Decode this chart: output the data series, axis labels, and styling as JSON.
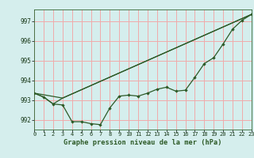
{
  "title": "Graphe pression niveau de la mer (hPa)",
  "bg_color": "#d5eeed",
  "grid_color": "#f0aaaa",
  "line_color": "#2d5a27",
  "xlim": [
    0,
    23
  ],
  "ylim": [
    991.5,
    997.6
  ],
  "yticks": [
    992,
    993,
    994,
    995,
    996,
    997
  ],
  "xticks": [
    0,
    1,
    2,
    3,
    4,
    5,
    6,
    7,
    8,
    9,
    10,
    11,
    12,
    13,
    14,
    15,
    16,
    17,
    18,
    19,
    20,
    21,
    22,
    23
  ],
  "series1_x": [
    0,
    1,
    2,
    3,
    4,
    5,
    6,
    7,
    8,
    9,
    10,
    11,
    12,
    13,
    14,
    15,
    16,
    17,
    18,
    19,
    20,
    21,
    22,
    23
  ],
  "series1_y": [
    993.35,
    993.15,
    992.8,
    992.75,
    991.9,
    991.9,
    991.8,
    991.75,
    992.6,
    993.2,
    993.25,
    993.2,
    993.35,
    993.55,
    993.65,
    993.45,
    993.5,
    994.15,
    994.85,
    995.15,
    995.85,
    996.6,
    997.05,
    997.35
  ],
  "series2_x": [
    0,
    1,
    2,
    3,
    23
  ],
  "series2_y": [
    993.35,
    993.15,
    992.8,
    993.1,
    997.35
  ],
  "series3_x": [
    0,
    3,
    23
  ],
  "series3_y": [
    993.35,
    993.1,
    997.35
  ]
}
